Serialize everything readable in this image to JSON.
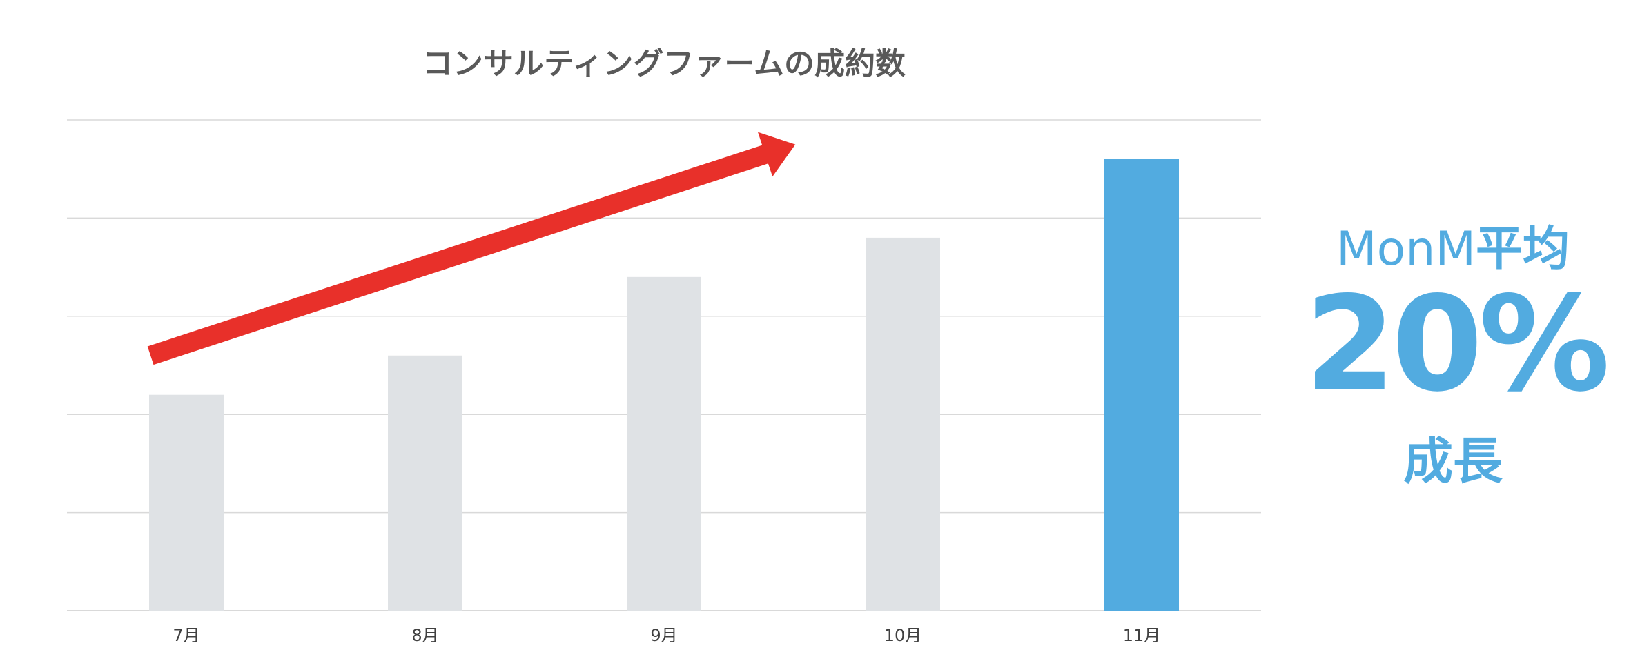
{
  "chart_data": {
    "type": "bar",
    "title": "コンサルティングファームの成約数",
    "categories": [
      "7月",
      "8月",
      "9月",
      "10月",
      "11月"
    ],
    "values": [
      44,
      52,
      68,
      76,
      92
    ],
    "ylim": [
      0,
      100
    ],
    "grid": true,
    "highlight_index": 4,
    "colors": {
      "bar": "#dfe2e5",
      "highlight": "#52abe0",
      "trend_arrow": "#e8302a",
      "gridline": "#d9d9d9",
      "callout": "#52abe0"
    },
    "trend_arrow": {
      "from": [
        0.35,
        52
      ],
      "to": [
        3.05,
        95
      ]
    }
  },
  "callout": {
    "metric": "MonM",
    "label": "平均",
    "value": "20%",
    "caption": "成長"
  }
}
